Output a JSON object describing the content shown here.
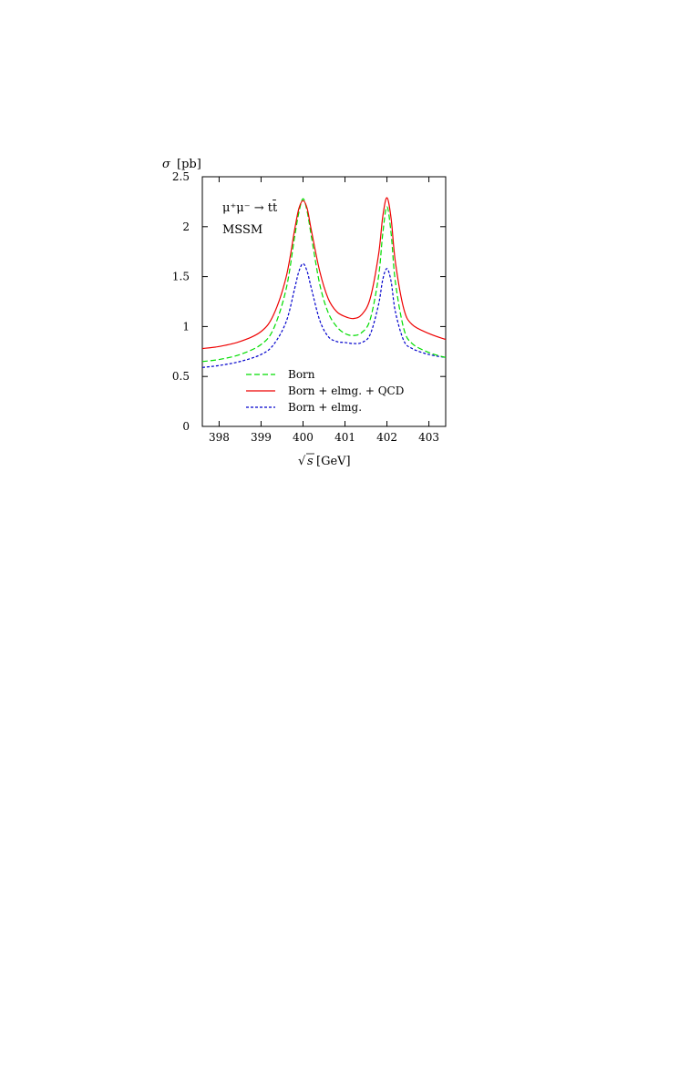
{
  "chart_data": {
    "type": "line",
    "ylabel_symbol": "σ",
    "ylabel_unit": "[pb]",
    "xlabel_unit": "[GeV]",
    "annotation_process": "μ⁺μ⁻ → tt̄",
    "annotation_model": "MSSM",
    "xlim": [
      397.6,
      403.4
    ],
    "ylim": [
      0,
      2.5
    ],
    "xticks": [
      398,
      399,
      400,
      401,
      402,
      403
    ],
    "yticks": [
      0,
      0.5,
      1,
      1.5,
      2,
      2.5
    ],
    "ytick_labels": [
      "0",
      "0.5",
      "1",
      "1.5",
      "2",
      "2.5"
    ],
    "grid": false,
    "legend_position": "bottom-center",
    "series": [
      {
        "name": "Born",
        "color": "#00dd00",
        "dash": "dashed",
        "x": [
          397.6,
          398.0,
          398.5,
          399.0,
          399.3,
          399.6,
          399.8,
          399.9,
          400.0,
          400.1,
          400.2,
          400.4,
          400.6,
          400.8,
          401.0,
          401.2,
          401.4,
          401.6,
          401.8,
          401.9,
          402.0,
          402.1,
          402.2,
          402.4,
          402.6,
          403.0,
          403.4
        ],
        "y": [
          0.65,
          0.67,
          0.72,
          0.82,
          0.98,
          1.38,
          1.9,
          2.14,
          2.28,
          2.15,
          1.9,
          1.42,
          1.14,
          1.0,
          0.93,
          0.91,
          0.94,
          1.07,
          1.5,
          1.93,
          2.2,
          1.93,
          1.45,
          0.98,
          0.83,
          0.74,
          0.69
        ]
      },
      {
        "name": "Born + elmg. + QCD",
        "color": "#ee0000",
        "dash": "solid",
        "x": [
          397.6,
          398.0,
          398.5,
          399.0,
          399.3,
          399.6,
          399.8,
          399.9,
          400.0,
          400.1,
          400.2,
          400.4,
          400.6,
          400.8,
          401.0,
          401.2,
          401.4,
          401.6,
          401.8,
          401.9,
          402.0,
          402.1,
          402.2,
          402.4,
          402.6,
          403.0,
          403.4
        ],
        "y": [
          0.78,
          0.8,
          0.85,
          0.95,
          1.12,
          1.5,
          1.97,
          2.18,
          2.26,
          2.18,
          1.96,
          1.55,
          1.28,
          1.15,
          1.1,
          1.08,
          1.12,
          1.28,
          1.72,
          2.1,
          2.29,
          2.08,
          1.65,
          1.18,
          1.02,
          0.93,
          0.87
        ]
      },
      {
        "name": "Born + elmg.",
        "color": "#0000cc",
        "dash": "dotted",
        "x": [
          397.6,
          398.0,
          398.5,
          399.0,
          399.3,
          399.6,
          399.8,
          399.9,
          400.0,
          400.1,
          400.2,
          400.4,
          400.6,
          400.8,
          401.0,
          401.2,
          401.4,
          401.6,
          401.8,
          401.9,
          402.0,
          402.1,
          402.2,
          402.4,
          402.6,
          403.0,
          403.4
        ],
        "y": [
          0.59,
          0.61,
          0.65,
          0.72,
          0.82,
          1.05,
          1.38,
          1.55,
          1.63,
          1.55,
          1.38,
          1.06,
          0.9,
          0.85,
          0.84,
          0.83,
          0.84,
          0.92,
          1.22,
          1.47,
          1.58,
          1.45,
          1.15,
          0.86,
          0.78,
          0.72,
          0.69
        ]
      }
    ]
  }
}
